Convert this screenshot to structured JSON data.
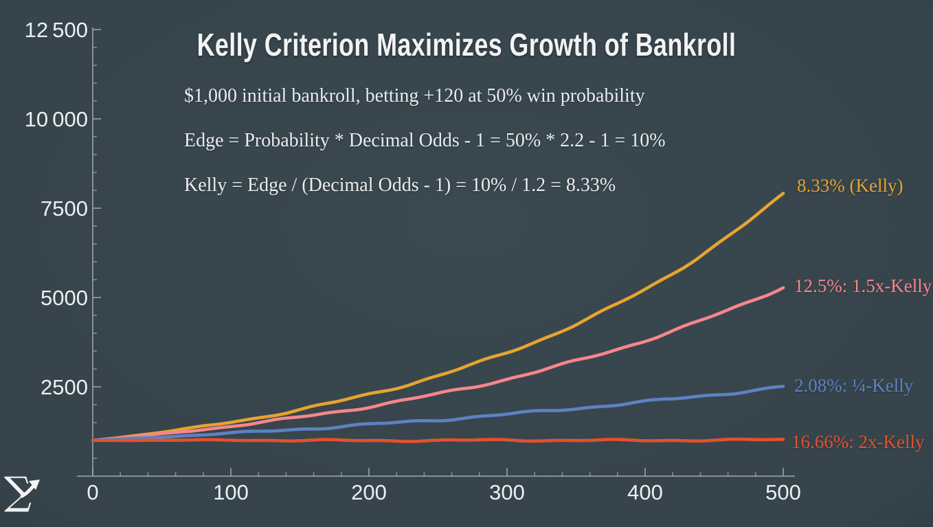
{
  "page": {
    "background": "#36434b"
  },
  "header": {
    "title": "Kelly Criterion Maximizes Growth of Bankroll",
    "subtitles": [
      "$1,000 initial bankroll, betting +120 at 50% win probability",
      "Edge = Probability * Decimal Odds - 1 = 50% * 2.2 - 1 = 10%",
      "Kelly = Edge / (Decimal Odds - 1) = 10% / 1.2 = 8.33%"
    ]
  },
  "watermark": {
    "sigma": "∑"
  },
  "colors": {
    "background": "#36434b",
    "axis": "#9aa4a8",
    "tick_text": "#edf0f1",
    "kelly_orange": "#e6a42f",
    "kelly_15x_pink": "#f7868a",
    "kelly_quarter_blue": "#5c82c4",
    "kelly_2x_red": "#e2522c"
  },
  "chart_data": {
    "type": "line",
    "title": "Kelly Criterion Maximizes Growth of Bankroll",
    "xlabel": "",
    "ylabel": "",
    "xlim": [
      0,
      500
    ],
    "ylim": [
      0,
      13000
    ],
    "grid": false,
    "legend_position": "right-of-line-ends",
    "initial_bankroll": 1000,
    "x": [
      0,
      50,
      100,
      150,
      200,
      250,
      300,
      350,
      400,
      450,
      500
    ],
    "x_tick_values": [
      0,
      100,
      200,
      300,
      400,
      500
    ],
    "x_tick_labels": [
      "0",
      "100",
      "200",
      "300",
      "400",
      "500"
    ],
    "x_minor_tick_step": 20,
    "y_tick_values": [
      2500,
      5000,
      7500,
      10000,
      12500
    ],
    "y_tick_labels": [
      "2500",
      "5000",
      "7500",
      "10 000",
      "12 500"
    ],
    "y_minor_tick_step": 500,
    "series": [
      {
        "name": "8.33% (Kelly)",
        "bet_fraction": "8.33%",
        "color": "#e6a42f",
        "values": [
          1000,
          1230,
          1510,
          1860,
          2290,
          2810,
          3460,
          4250,
          5230,
          6430,
          7900
        ]
      },
      {
        "name": "12.5%: 1.5x-Kelly",
        "bet_fraction": "12.5%",
        "color": "#f7868a",
        "values": [
          1000,
          1180,
          1400,
          1650,
          1950,
          2300,
          2720,
          3220,
          3800,
          4490,
          5300
        ]
      },
      {
        "name": "2.08%: ¼-Kelly",
        "bet_fraction": "2.08%",
        "color": "#5c82c4",
        "values": [
          1000,
          1100,
          1200,
          1320,
          1440,
          1580,
          1730,
          1900,
          2080,
          2280,
          2500
        ]
      },
      {
        "name": "16.66%: 2x-Kelly",
        "bet_fraction": "16.66%",
        "color": "#e2522c",
        "values": [
          1000,
          1005,
          1010,
          1000,
          995,
          1000,
          1008,
          1004,
          1000,
          1010,
          1020
        ]
      }
    ]
  }
}
